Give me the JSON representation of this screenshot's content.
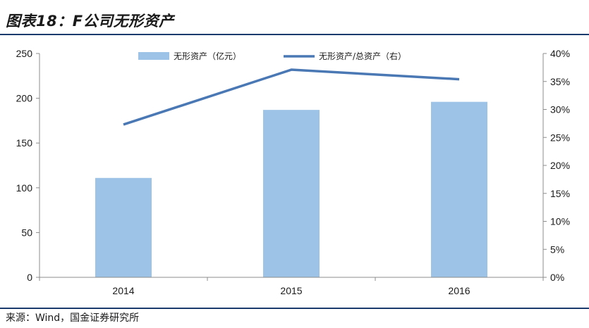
{
  "figure": {
    "title": "图表18：F公司无形资产",
    "source": "来源：Wind，国金证券研究所"
  },
  "colors": {
    "bar": "#9DC3E6",
    "line": "#4A78B5",
    "rule": "#1a3a6e",
    "axis": "#8c8c8c"
  },
  "chart_data": {
    "type": "bar",
    "title": "",
    "categories": [
      "2014",
      "2015",
      "2016"
    ],
    "series": [
      {
        "name": "无形资产（亿元）",
        "type": "bar",
        "axis": "left",
        "values": [
          111,
          187,
          196
        ]
      },
      {
        "name": "无形资产/总资产（右）",
        "type": "line",
        "axis": "right",
        "values": [
          27.3,
          37.1,
          35.4
        ]
      }
    ],
    "y_left": {
      "min": 0,
      "max": 250,
      "ticks": [
        "0",
        "50",
        "100",
        "150",
        "200",
        "250"
      ]
    },
    "y_right": {
      "min": 0,
      "max": 40,
      "ticks": [
        "0%",
        "5%",
        "10%",
        "15%",
        "20%",
        "25%",
        "30%",
        "35%",
        "40%"
      ]
    },
    "xlabel": "",
    "ylabel": "",
    "grid": false,
    "legend_position": "top-center"
  }
}
